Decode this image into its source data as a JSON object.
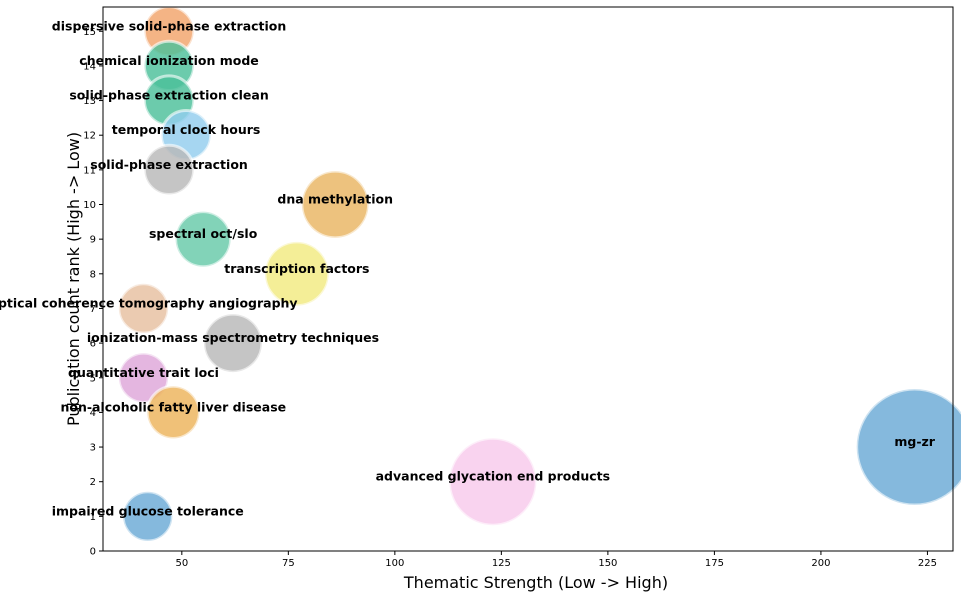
{
  "chart_data": {
    "type": "scatter",
    "title": "",
    "xlabel": "Thematic Strength (Low -> High)",
    "ylabel": "Publication count rank (High -> Low)",
    "xlim": [
      31.5,
      231
    ],
    "ylim": [
      0,
      15.7
    ],
    "xticks": [
      50,
      75,
      100,
      125,
      150,
      175,
      200,
      225
    ],
    "yticks": [
      0,
      1,
      2,
      3,
      4,
      5,
      6,
      7,
      8,
      9,
      10,
      11,
      12,
      13,
      14,
      15
    ],
    "grid": false,
    "points": [
      {
        "label": "dispersive solid-phase extraction",
        "x": 47,
        "y": 15,
        "size": 0.85,
        "color": "#f2a46a"
      },
      {
        "label": "chemical ionization mode",
        "x": 47,
        "y": 14,
        "size": 0.85,
        "color": "#4cbf9a"
      },
      {
        "label": "solid-phase extraction clean",
        "x": 47,
        "y": 13,
        "size": 0.85,
        "color": "#4cbf9a"
      },
      {
        "label": "temporal clock hours",
        "x": 51,
        "y": 12,
        "size": 0.85,
        "color": "#92cdee"
      },
      {
        "label": "solid-phase extraction",
        "x": 47,
        "y": 11,
        "size": 0.85,
        "color": "#b8b8b8"
      },
      {
        "label": "dna methylation",
        "x": 86,
        "y": 10,
        "size": 1.15,
        "color": "#e9b462"
      },
      {
        "label": "spectral oct/slo",
        "x": 55,
        "y": 9,
        "size": 0.95,
        "color": "#66c9a8"
      },
      {
        "label": "transcription factors",
        "x": 77,
        "y": 8,
        "size": 1.1,
        "color": "#f2ea80"
      },
      {
        "label": "optical coherence tomography angiography",
        "x": 41,
        "y": 7,
        "size": 0.85,
        "color": "#e6bfa0"
      },
      {
        "label": "ionization-mass spectrometry techniques",
        "x": 62,
        "y": 6,
        "size": 1.0,
        "color": "#b8b8b8"
      },
      {
        "label": "quantitative trait loci",
        "x": 41,
        "y": 5,
        "size": 0.85,
        "color": "#dea6d9"
      },
      {
        "label": "non-alcoholic fatty liver disease",
        "x": 48,
        "y": 4,
        "size": 0.9,
        "color": "#edb35a"
      },
      {
        "label": "mg-zr",
        "x": 222,
        "y": 3,
        "size": 2.0,
        "color": "#6aaad6"
      },
      {
        "label": "advanced glycation end products",
        "x": 123,
        "y": 2,
        "size": 1.5,
        "color": "#f8c9ec"
      },
      {
        "label": "impaired glucose tolerance",
        "x": 42,
        "y": 1,
        "size": 0.85,
        "color": "#6aaad6"
      }
    ]
  }
}
